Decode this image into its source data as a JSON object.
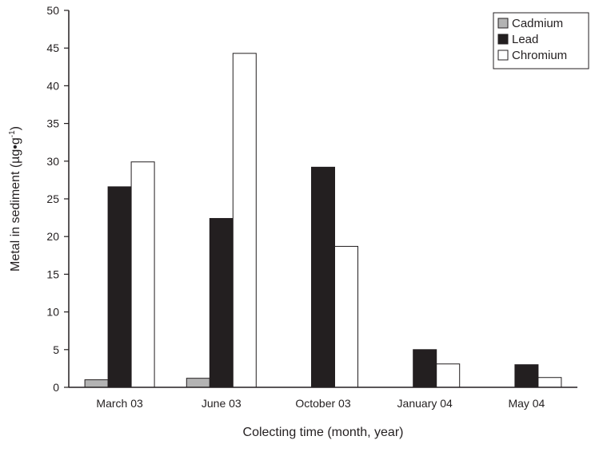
{
  "chart_data": {
    "type": "bar",
    "categories": [
      "March 03",
      "June 03",
      "October 03",
      "January 04",
      "May 04"
    ],
    "series": [
      {
        "name": "Cadmium",
        "values": [
          1.0,
          1.2,
          null,
          null,
          null
        ]
      },
      {
        "name": "Lead",
        "values": [
          26.6,
          22.4,
          29.2,
          5.0,
          3.0
        ]
      },
      {
        "name": "Chromium",
        "values": [
          29.9,
          44.3,
          18.7,
          3.1,
          1.3
        ]
      }
    ],
    "series_colors": [
      "#b3b3b3",
      "#231f20",
      "#ffffff"
    ],
    "bar_stroke_color": "#231f20",
    "xlabel": "Colecting time (month, year)",
    "ylabel": "Metal in sediment (µg•g",
    "ylabel_superscript": "-1",
    "ylabel_suffix": ")",
    "ylim": [
      0,
      50
    ],
    "yticks": [
      0,
      5,
      10,
      15,
      20,
      25,
      30,
      35,
      40,
      45,
      50
    ],
    "legend_position": "top-right",
    "grid": false
  }
}
